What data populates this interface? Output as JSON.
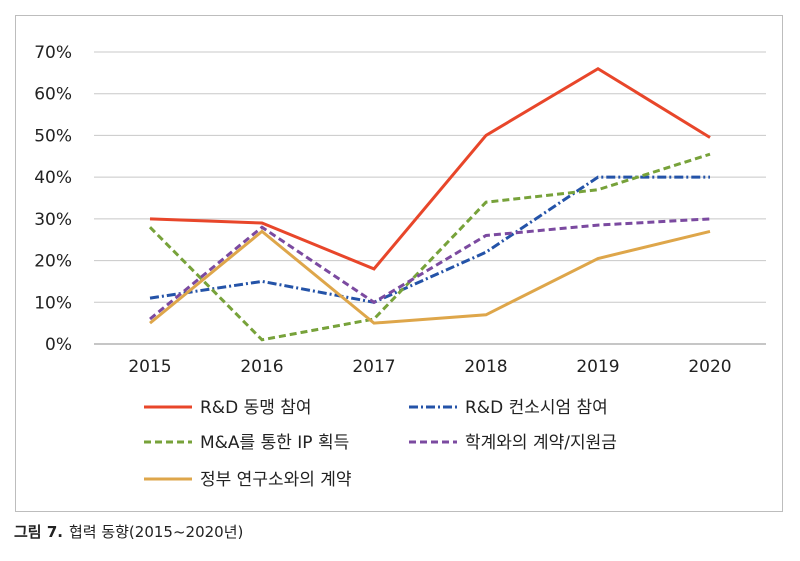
{
  "chart_data": {
    "type": "line",
    "categories": [
      "2015",
      "2016",
      "2017",
      "2018",
      "2019",
      "2020"
    ],
    "y_ticks": [
      "0%",
      "10%",
      "20%",
      "30%",
      "40%",
      "50%",
      "60%",
      "70%"
    ],
    "ylim": [
      0,
      70
    ],
    "grid": true,
    "legend_position": "bottom",
    "series": [
      {
        "name": "R&D 동맹 참여",
        "values": [
          30,
          29,
          18,
          50,
          66,
          49.5
        ],
        "color": "#e8462a",
        "dash": "solid"
      },
      {
        "name": "R&D 컨소시엄 참여",
        "values": [
          11,
          15,
          10,
          22,
          40,
          40
        ],
        "color": "#2453a8",
        "dash": "dashdot"
      },
      {
        "name": "M&A를 통한 IP 획득",
        "values": [
          28,
          1,
          6,
          34,
          37,
          45.5
        ],
        "color": "#77a23a",
        "dash": "dash"
      },
      {
        "name": "학계와의 계약/지원금",
        "values": [
          6,
          28,
          10,
          26,
          28.5,
          30
        ],
        "color": "#7b4aa0",
        "dash": "dash"
      },
      {
        "name": "정부 연구소와의 계약",
        "values": [
          5,
          27,
          5,
          7,
          20.5,
          27
        ],
        "color": "#dea64a",
        "dash": "solid"
      }
    ]
  },
  "caption": {
    "label": "그림 7.",
    "text": "협력 동향(2015~2020년)"
  }
}
